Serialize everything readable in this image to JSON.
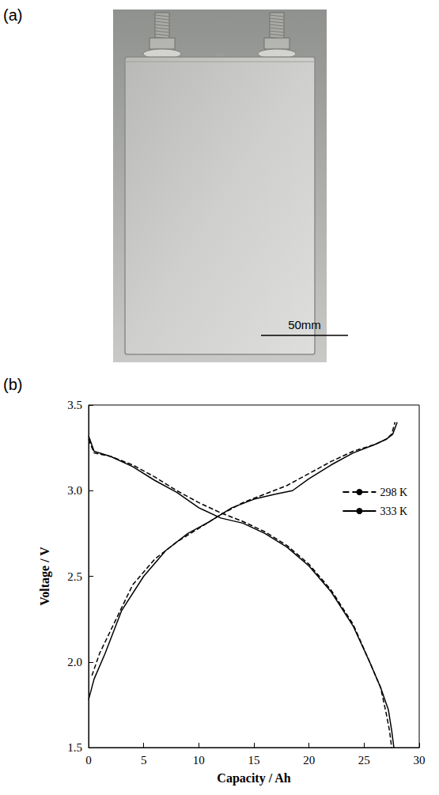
{
  "photo": {
    "label": "(a)",
    "scale_bar_label": "50mm"
  },
  "chart_data": {
    "type": "line",
    "label": "(b)",
    "x_label": "Capacity / Ah",
    "y_label": "Voltage / V",
    "xlim": [
      0,
      30
    ],
    "xticks": [
      0,
      5,
      10,
      15,
      20,
      25,
      30
    ],
    "ylim": [
      1.5,
      3.5
    ],
    "yticks": [
      1.5,
      {
        "value": 2,
        "label": "2.0"
      },
      2.5,
      {
        "value": 3,
        "label": "3.0"
      },
      3.5
    ],
    "grid": false,
    "legend": "right",
    "series": [
      {
        "name": "298 K",
        "color": "#000000",
        "line_style": "dashed",
        "x": [
          0,
          0.5,
          2,
          4,
          6,
          8,
          10,
          12,
          14,
          16,
          18,
          20,
          22,
          24,
          25.5,
          26.5,
          27,
          27.3,
          27.5
        ],
        "values": [
          3.3,
          3.22,
          3.2,
          3.15,
          3.08,
          3.0,
          2.93,
          2.87,
          2.82,
          2.76,
          2.68,
          2.57,
          2.42,
          2.22,
          2.0,
          1.85,
          1.7,
          1.6,
          1.5
        ]
      },
      {
        "name": "298 K",
        "color": "#000000",
        "line_style": "dashed",
        "x": [
          0.3,
          1,
          2.5,
          4,
          6,
          8,
          10,
          12,
          14,
          16,
          18,
          20,
          22,
          24,
          26,
          27,
          27.5,
          27.8
        ],
        "values": [
          1.92,
          2.05,
          2.25,
          2.45,
          2.6,
          2.7,
          2.78,
          2.86,
          2.93,
          2.98,
          3.03,
          3.1,
          3.17,
          3.23,
          3.27,
          3.3,
          3.33,
          3.4
        ]
      },
      {
        "name": "333 K",
        "color": "#000000",
        "line_style": "solid",
        "x": [
          0,
          0.5,
          2,
          4,
          6,
          8,
          10,
          12,
          14,
          16,
          18,
          20,
          22,
          24,
          25.5,
          26.5,
          27.2,
          27.5,
          27.7
        ],
        "values": [
          3.32,
          3.23,
          3.2,
          3.14,
          3.06,
          2.99,
          2.9,
          2.84,
          2.81,
          2.75,
          2.67,
          2.56,
          2.41,
          2.21,
          2.0,
          1.85,
          1.72,
          1.6,
          1.5
        ]
      },
      {
        "name": "333 K",
        "color": "#000000",
        "line_style": "solid",
        "x": [
          0,
          0.5,
          1.5,
          3,
          5,
          7,
          9,
          11,
          13,
          15,
          17,
          18.5,
          20,
          22,
          24,
          26,
          27,
          27.6,
          28
        ],
        "values": [
          1.78,
          1.9,
          2.05,
          2.3,
          2.5,
          2.65,
          2.75,
          2.82,
          2.9,
          2.95,
          2.98,
          3.0,
          3.07,
          3.15,
          3.22,
          3.27,
          3.3,
          3.33,
          3.4
        ]
      }
    ]
  }
}
